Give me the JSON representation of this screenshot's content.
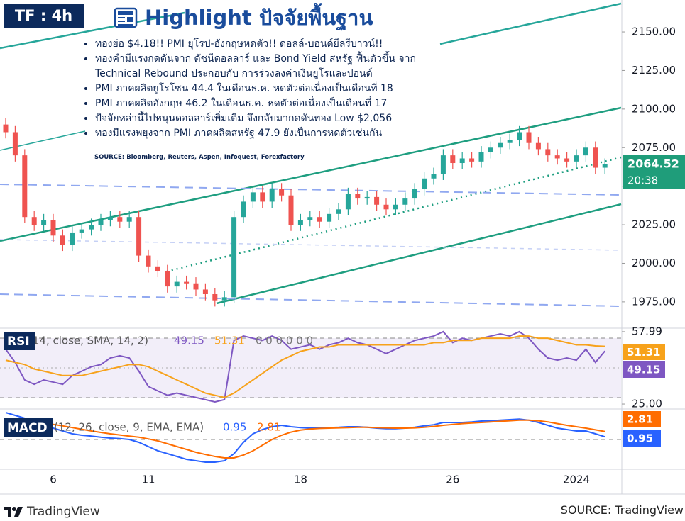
{
  "overlay": {
    "timeframe": "TF : 4h",
    "title": "Highlight ปัจจัยพื้นฐาน",
    "bullets": [
      "ทองย่อ $4.18!!  PMI ยุโรป-อังกฤษหดตัว!! ดอลล์-บอนด์ยีลรีบาวน์!!",
      "ทองคำมีแรงกดดันจาก ดัชนีดอลลาร์ และ Bond Yield สหรัฐ ฟื้นตัวขึ้น จาก Technical Rebound  ประกอบกับ การร่วงลงค่าเงินยูโรและปอนด์",
      "PMI ภาคผลิตยูโรโซน 44.4 ในเดือนธ.ค. หดตัวต่อเนื่องเป็นเดือนที่ 18",
      "PMI ภาคผลิตอังกฤษ 46.2 ในเดือนธ.ค. หดตัวต่อเนื่องเป็นเดือนที่ 17",
      "ปัจจัยหล่านี้ไปหนุนดอลลาร์เพิ่มเติม จึงกลับมากดดันทอง Low $2,056",
      "ทองมีแรงพยุงจาก PMI ภาคผลิตสหรัฐ 47.9  ยังเป็นการหดตัวเช่นกัน"
    ],
    "source": "SOURCE: Bloomberg, Reuters, Aspen, Infoquest, Forexfactory",
    "brand": "TradingView",
    "footer_source": "SOURCE: TradingView"
  },
  "chart_data": [
    {
      "type": "candlestick",
      "categories": [
        null,
        null,
        null,
        null,
        null,
        "6",
        null,
        null,
        null,
        null,
        null,
        null,
        null,
        null,
        null,
        "11",
        null,
        null,
        null,
        null,
        null,
        null,
        null,
        null,
        null,
        null,
        null,
        null,
        null,
        null,
        null,
        "18",
        null,
        null,
        null,
        null,
        null,
        null,
        null,
        null,
        null,
        null,
        null,
        null,
        null,
        null,
        null,
        "26",
        null,
        null,
        null,
        null,
        null,
        null,
        null,
        null,
        null,
        null,
        null,
        null,
        "2024",
        null,
        null,
        null
      ],
      "open": [
        2090,
        2085,
        2070,
        2030,
        2025,
        2028,
        2018,
        2012,
        2020,
        2022,
        2025,
        2028,
        2030,
        2027,
        2030,
        2005,
        1998,
        1995,
        1985,
        1988,
        1987,
        1983,
        1980,
        1976,
        1978,
        2030,
        2040,
        2046,
        2040,
        2048,
        2044,
        2025,
        2028,
        2030,
        2027,
        2032,
        2035,
        2045,
        2042,
        2043,
        2038,
        2035,
        2038,
        2042,
        2048,
        2055,
        2058,
        2070,
        2065,
        2068,
        2066,
        2072,
        2075,
        2078,
        2080,
        2085,
        2078,
        2074,
        2070,
        2068,
        2066,
        2070,
        2075,
        2062
      ],
      "high": [
        2094,
        2089,
        2074,
        2034,
        2032,
        2032,
        2022,
        2024,
        2026,
        2029,
        2032,
        2034,
        2034,
        2034,
        2034,
        2009,
        2002,
        1999,
        1992,
        1992,
        1991,
        1987,
        1984,
        1982,
        2034,
        2044,
        2050,
        2050,
        2052,
        2052,
        2048,
        2032,
        2034,
        2034,
        2036,
        2039,
        2049,
        2049,
        2047,
        2047,
        2042,
        2042,
        2046,
        2052,
        2059,
        2062,
        2074,
        2074,
        2072,
        2072,
        2076,
        2079,
        2082,
        2084,
        2089,
        2089,
        2082,
        2078,
        2074,
        2072,
        2074,
        2079,
        2079,
        2068
      ],
      "low": [
        2081,
        2066,
        2026,
        2021,
        2021,
        2014,
        2008,
        2008,
        2016,
        2018,
        2021,
        2024,
        2023,
        2023,
        2001,
        1994,
        1991,
        1981,
        1981,
        1983,
        1979,
        1976,
        1972,
        1972,
        1974,
        2026,
        2036,
        2036,
        2036,
        2040,
        2021,
        2021,
        2024,
        2023,
        2023,
        2028,
        2031,
        2038,
        2038,
        2034,
        2031,
        2031,
        2034,
        2038,
        2044,
        2051,
        2054,
        2061,
        2061,
        2062,
        2062,
        2068,
        2071,
        2074,
        2076,
        2074,
        2070,
        2066,
        2064,
        2062,
        2062,
        2066,
        2058,
        2058
      ],
      "close": [
        2085,
        2070,
        2030,
        2025,
        2028,
        2018,
        2012,
        2020,
        2022,
        2025,
        2028,
        2030,
        2027,
        2030,
        2005,
        1998,
        1995,
        1985,
        1988,
        1987,
        1983,
        1980,
        1976,
        1978,
        2030,
        2040,
        2046,
        2040,
        2048,
        2044,
        2025,
        2028,
        2030,
        2027,
        2032,
        2035,
        2045,
        2042,
        2043,
        2038,
        2035,
        2038,
        2042,
        2048,
        2055,
        2058,
        2070,
        2065,
        2068,
        2066,
        2072,
        2075,
        2078,
        2080,
        2085,
        2078,
        2074,
        2070,
        2068,
        2066,
        2070,
        2075,
        2062,
        2064.52
      ],
      "up_color": "#26a69a",
      "down_color": "#ef5350",
      "countdown": "20:38",
      "ylim": [
        1958.4,
        2170.7
      ],
      "yticks": [
        {
          "value": 1975,
          "label": "1975.00"
        },
        {
          "value": 2000,
          "label": "2000.00"
        },
        {
          "value": 2025,
          "label": "2025.00"
        },
        {
          "value": 2050,
          "label": "2050.00"
        },
        {
          "value": 2075,
          "label": "2075.00"
        },
        {
          "value": 2100,
          "label": "2100.00"
        },
        {
          "value": 2125,
          "label": "2125.00"
        },
        {
          "value": 2150,
          "label": "2150.00"
        }
      ]
    },
    {
      "type": "line",
      "title": "RSI",
      "params": "(14, close, SMA, 14, 2)",
      "extra": "0 0 0 0 0 0",
      "ylim": [
        23.4,
        59.9
      ],
      "yticks": [
        {
          "value": 57.99,
          "label": "57.99"
        },
        {
          "value": 25,
          "label": "25.00"
        }
      ],
      "series": [
        {
          "color": "#7e57c2",
          "values": [
            50,
            44,
            36,
            34,
            36,
            35,
            34,
            38,
            40,
            42,
            43,
            46,
            47,
            46,
            40,
            33,
            31,
            29,
            30,
            29,
            28,
            27,
            26,
            27,
            54,
            56,
            55,
            54,
            56,
            54,
            50,
            51,
            52,
            50,
            52,
            53,
            55,
            53,
            52,
            50,
            48,
            50,
            52,
            54,
            55,
            56,
            58,
            53,
            55,
            54,
            55,
            56,
            57,
            56,
            58,
            55,
            50,
            46,
            45,
            46,
            45,
            50,
            44,
            49.15
          ]
        },
        {
          "color": "#f7a21b",
          "values": [
            45,
            44,
            43,
            41,
            40,
            39,
            38,
            38,
            38,
            39,
            40,
            41,
            42,
            43,
            43,
            42,
            40,
            38,
            36,
            34,
            32,
            30,
            29,
            28,
            30,
            33,
            36,
            39,
            42,
            45,
            47,
            49,
            50,
            51,
            51,
            52,
            52,
            52,
            52,
            52,
            52,
            52,
            52,
            52,
            52,
            53,
            53,
            54,
            54,
            54,
            55,
            55,
            55,
            55,
            56,
            56,
            55,
            55,
            54,
            53,
            52,
            52,
            51.5,
            51.31
          ]
        }
      ]
    },
    {
      "type": "line",
      "title": "MACD",
      "params": "(12, 26, close, 9, EMA, EMA)",
      "ylim": [
        -10,
        10
      ],
      "series": [
        {
          "color": "#2962ff",
          "values": [
            9.5,
            8.5,
            7.5,
            6,
            5,
            4,
            3,
            2,
            1.5,
            1.2,
            0.8,
            0.5,
            0.3,
            0,
            -1,
            -2.5,
            -4,
            -5,
            -6,
            -7,
            -7.5,
            -8,
            -8,
            -7.5,
            -5,
            -1,
            2,
            3.5,
            4.5,
            5,
            4.5,
            4.2,
            4,
            4,
            4.2,
            4.3,
            4.5,
            4.5,
            4.3,
            4,
            3.8,
            3.8,
            4,
            4.3,
            4.8,
            5.2,
            6,
            6,
            6,
            6.2,
            6.5,
            6.6,
            6.8,
            7,
            7.2,
            6.8,
            6,
            5,
            4,
            3.5,
            3,
            3,
            2,
            0.95
          ]
        },
        {
          "color": "#ff6d00",
          "values": [
            6,
            6.2,
            6.3,
            6.2,
            5.8,
            5.3,
            4.8,
            4.2,
            3.6,
            3,
            2.5,
            2,
            1.6,
            1.2,
            0.8,
            0.2,
            -0.5,
            -1.5,
            -2.5,
            -3.5,
            -4.5,
            -5.3,
            -6,
            -6.5,
            -6.5,
            -5.5,
            -4,
            -2,
            0,
            1.5,
            2.6,
            3.3,
            3.7,
            3.9,
            4,
            4.1,
            4.2,
            4.3,
            4.3,
            4.2,
            4.1,
            4,
            4,
            4.1,
            4.3,
            4.6,
            5,
            5.3,
            5.6,
            5.8,
            6,
            6.2,
            6.4,
            6.6,
            6.8,
            6.8,
            6.6,
            6.2,
            5.6,
            5,
            4.5,
            4,
            3.4,
            2.81
          ]
        }
      ]
    }
  ]
}
